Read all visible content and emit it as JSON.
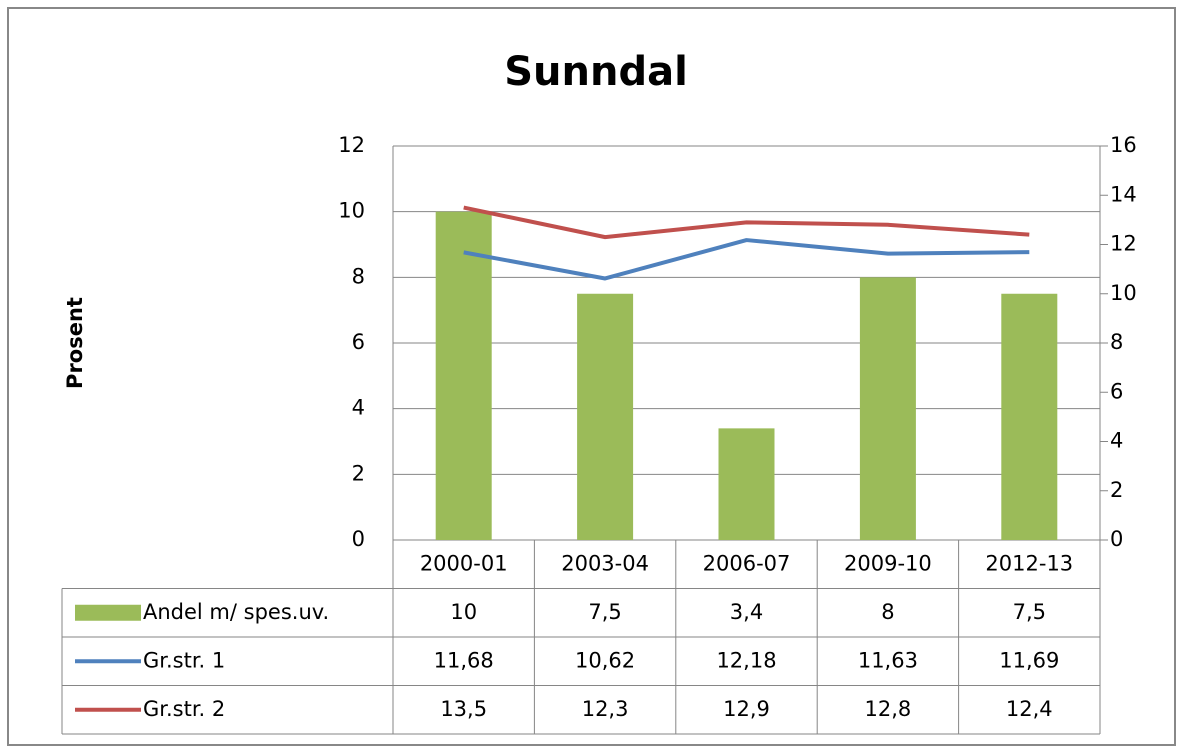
{
  "chart_data": {
    "type": "bar",
    "title": "Sunndal",
    "y_label": "Prosent",
    "categories": [
      "2000-01",
      "2003-04",
      "2006-07",
      "2009-10",
      "2012-13"
    ],
    "series": [
      {
        "name": "Andel m/ spes.uv.",
        "type": "bar",
        "color": "#9bbb59",
        "values": [
          10,
          7.5,
          3.4,
          8,
          7.5
        ],
        "value_labels": [
          "10",
          "7,5",
          "3,4",
          "8",
          "7,5"
        ]
      },
      {
        "name": "Gr.str. 1",
        "type": "line",
        "axis": "y2",
        "color": "#4f81bd",
        "values": [
          11.68,
          10.62,
          12.18,
          11.63,
          11.69
        ],
        "value_labels": [
          "11,68",
          "10,62",
          "12,18",
          "11,63",
          "11,69"
        ]
      },
      {
        "name": "Gr.str. 2",
        "type": "line",
        "axis": "y2",
        "color": "#c0504d",
        "values": [
          13.5,
          12.3,
          12.9,
          12.8,
          12.4
        ],
        "value_labels": [
          "13,5",
          "12,3",
          "12,9",
          "12,8",
          "12,4"
        ]
      }
    ],
    "ylim": [
      0,
      12
    ],
    "yticks": [
      0,
      2,
      4,
      6,
      8,
      10,
      12
    ],
    "y2lim": [
      0,
      16
    ],
    "y2ticks": [
      0,
      2,
      4,
      6,
      8,
      10,
      12,
      14,
      16
    ],
    "grid": true
  }
}
